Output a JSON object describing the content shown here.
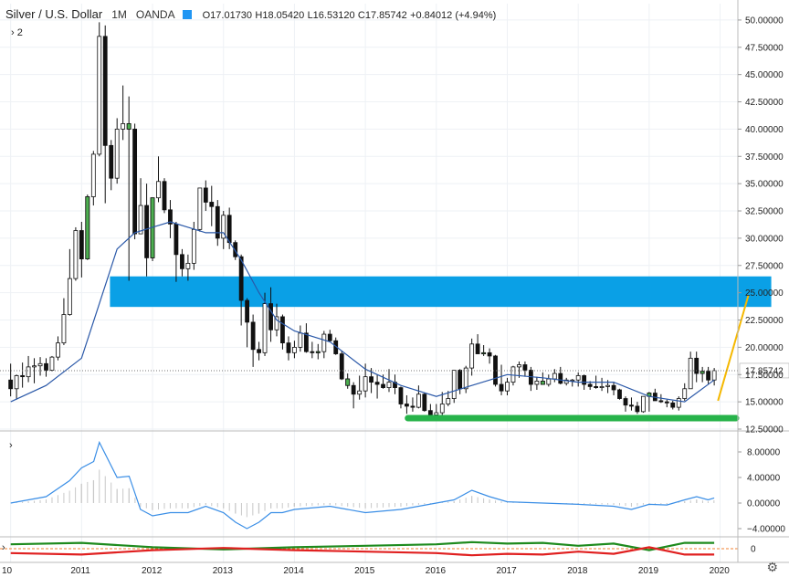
{
  "header": {
    "symbol": "Silver / U.S. Dollar",
    "interval": "1M",
    "source": "OANDA",
    "open": "O17.01730",
    "high": "H18.05420",
    "low": "L16.53120",
    "close": "C17.85742",
    "change": "+0.84012 (+4.94%)",
    "indicator_toggle": "›  2",
    "flag_color": "#2196f3"
  },
  "last_price_label": "17.85742",
  "colors": {
    "up": "#4caf50",
    "down": "#111111",
    "ma": "#2a58a8",
    "zone": "#0aa0e6",
    "support": "#27b34a",
    "trend": "#f5b800",
    "osc_green": "#1e8b1e",
    "osc_red": "#e02020",
    "osc_ref": "#f08030"
  },
  "chart_data": [
    {
      "type": "candlestick",
      "title": "Silver / U.S. Dollar",
      "ylim": [
        12.5,
        51.5
      ],
      "y_ticks": [
        "50.00000",
        "47.50000",
        "45.00000",
        "42.50000",
        "40.00000",
        "37.50000",
        "35.00000",
        "32.50000",
        "30.00000",
        "27.50000",
        "25.00000",
        "22.50000",
        "20.00000",
        "17.50000",
        "15.00000",
        "12.50000"
      ],
      "x_ticks": [
        "10",
        "2011",
        "2012",
        "2013",
        "2014",
        "2015",
        "2016",
        "2017",
        "2018",
        "2019",
        "2020"
      ],
      "series": [
        {
          "name": "close",
          "type": "candles",
          "x": [
            2010.0,
            2010.083,
            2010.167,
            2010.25,
            2010.333,
            2010.417,
            2010.5,
            2010.583,
            2010.667,
            2010.75,
            2010.833,
            2010.917,
            2011.0,
            2011.083,
            2011.167,
            2011.25,
            2011.333,
            2011.417,
            2011.5,
            2011.583,
            2011.667,
            2011.75,
            2011.833,
            2011.917,
            2012.0,
            2012.083,
            2012.167,
            2012.25,
            2012.333,
            2012.417,
            2012.5,
            2012.583,
            2012.667,
            2012.75,
            2012.833,
            2012.917,
            2013.0,
            2013.083,
            2013.167,
            2013.25,
            2013.333,
            2013.417,
            2013.5,
            2013.583,
            2013.667,
            2013.75,
            2013.833,
            2013.917,
            2014.0,
            2014.083,
            2014.167,
            2014.25,
            2014.333,
            2014.417,
            2014.5,
            2014.583,
            2014.667,
            2014.75,
            2014.833,
            2014.917,
            2015.0,
            2015.083,
            2015.167,
            2015.25,
            2015.333,
            2015.417,
            2015.5,
            2015.583,
            2015.667,
            2015.75,
            2015.833,
            2015.917,
            2016.0,
            2016.083,
            2016.167,
            2016.25,
            2016.333,
            2016.417,
            2016.5,
            2016.583,
            2016.667,
            2016.75,
            2016.833,
            2016.917,
            2017.0,
            2017.083,
            2017.167,
            2017.25,
            2017.333,
            2017.417,
            2017.5,
            2017.583,
            2017.667,
            2017.75,
            2017.833,
            2017.917,
            2018.0,
            2018.083,
            2018.167,
            2018.25,
            2018.333,
            2018.417,
            2018.5,
            2018.583,
            2018.667,
            2018.75,
            2018.833,
            2018.917,
            2019.0,
            2019.083,
            2019.167,
            2019.25,
            2019.333,
            2019.417,
            2019.5,
            2019.583,
            2019.667,
            2019.75,
            2019.833,
            2019.917
          ],
          "o": [
            17.0,
            16.2,
            17.4,
            17.3,
            18.2,
            18.3,
            18.5,
            17.9,
            19.1,
            20.4,
            23.0,
            26.3,
            30.7,
            28.1,
            33.8,
            37.7,
            48.5,
            38.5,
            35.5,
            40.0,
            40.5,
            40.0,
            30.4,
            33.0,
            28.2,
            33.7,
            35.2,
            32.6,
            31.3,
            28.5,
            27.2,
            27.7,
            30.8,
            34.6,
            33.3,
            32.9,
            30.0,
            32.1,
            29.6,
            28.3,
            24.3,
            22.3,
            19.8,
            19.5,
            24.0,
            21.6,
            22.8,
            20.4,
            19.5,
            20.0,
            21.3,
            19.6,
            19.5,
            19.6,
            21.2,
            20.6,
            19.4,
            17.1,
            16.5,
            15.7,
            16.0,
            17.3,
            16.8,
            16.6,
            16.3,
            16.8,
            16.3,
            14.8,
            14.6,
            14.5,
            15.7,
            14.2,
            13.8,
            14.0,
            14.8,
            15.3,
            17.9,
            16.2,
            18.1,
            20.3,
            19.4,
            19.5,
            19.2,
            16.6,
            16.0,
            16.8,
            18.2,
            18.4,
            17.9,
            16.6,
            16.9,
            16.6,
            17.1,
            17.6,
            16.7,
            17.0,
            17.0,
            17.4,
            16.6,
            16.4,
            16.3,
            16.4,
            16.5,
            16.1,
            15.3,
            14.7,
            14.6,
            14.1,
            15.5,
            15.8,
            15.1,
            15.0,
            14.9,
            14.5,
            15.3,
            16.2,
            19.0,
            17.6,
            17.8,
            17.0
          ],
          "h": [
            18.5,
            17.5,
            18.6,
            19.2,
            19.0,
            19.1,
            19.0,
            19.2,
            21.0,
            24.5,
            29.0,
            31.0,
            31.5,
            34.0,
            38.0,
            49.8,
            49.5,
            39.0,
            41.0,
            44.0,
            43.0,
            40.5,
            35.5,
            35.0,
            33.7,
            37.5,
            35.5,
            33.5,
            31.5,
            29.0,
            28.5,
            31.5,
            34.5,
            35.3,
            34.8,
            33.5,
            32.5,
            32.8,
            29.8,
            28.5,
            24.5,
            23.0,
            20.5,
            25.0,
            25.5,
            24.0,
            23.0,
            21.0,
            20.6,
            22.0,
            22.2,
            20.5,
            20.3,
            21.5,
            21.6,
            20.9,
            19.7,
            17.6,
            16.8,
            17.4,
            18.5,
            18.1,
            17.5,
            17.5,
            18.0,
            17.5,
            16.4,
            15.6,
            15.4,
            16.5,
            15.8,
            14.8,
            14.8,
            15.9,
            16.0,
            17.8,
            18.0,
            18.3,
            20.8,
            21.2,
            20.2,
            19.9,
            19.3,
            18.4,
            17.2,
            18.3,
            18.7,
            18.7,
            18.2,
            17.3,
            17.7,
            17.5,
            18.0,
            18.2,
            17.2,
            17.1,
            17.7,
            17.5,
            16.9,
            17.4,
            17.2,
            17.0,
            16.8,
            16.2,
            15.5,
            15.4,
            15.0,
            15.2,
            15.9,
            16.2,
            15.7,
            15.2,
            15.1,
            15.5,
            16.7,
            19.6,
            19.6,
            18.2,
            18.2,
            18.1
          ],
          "l": [
            15.5,
            15.2,
            16.3,
            16.8,
            16.7,
            17.4,
            17.3,
            17.8,
            18.8,
            20.2,
            22.9,
            26.1,
            26.4,
            28.0,
            33.0,
            37.5,
            33.2,
            34.4,
            35.0,
            39.0,
            26.1,
            29.9,
            30.5,
            26.5,
            27.9,
            33.3,
            32.3,
            30.0,
            26.0,
            26.5,
            26.1,
            27.1,
            30.6,
            32.5,
            31.1,
            29.3,
            29.0,
            29.0,
            28.0,
            22.0,
            20.0,
            18.2,
            18.8,
            19.2,
            20.5,
            21.0,
            19.8,
            18.8,
            19.0,
            19.6,
            19.5,
            19.0,
            18.9,
            19.0,
            20.5,
            19.3,
            17.0,
            16.2,
            14.4,
            15.2,
            15.4,
            15.8,
            15.3,
            16.2,
            15.9,
            15.7,
            14.4,
            13.9,
            14.1,
            14.4,
            14.1,
            13.6,
            13.6,
            13.6,
            14.6,
            14.9,
            15.7,
            15.8,
            17.4,
            19.5,
            19.2,
            18.5,
            16.4,
            15.6,
            15.6,
            16.5,
            17.2,
            17.3,
            16.0,
            16.1,
            16.6,
            16.4,
            16.8,
            16.6,
            16.5,
            16.4,
            16.4,
            16.1,
            16.1,
            16.2,
            16.0,
            15.8,
            15.6,
            15.2,
            14.1,
            14.2,
            13.9,
            14.0,
            14.1,
            15.1,
            14.9,
            14.5,
            14.3,
            14.2,
            15.1,
            16.2,
            16.8,
            16.8,
            16.6,
            16.5
          ],
          "c": [
            16.2,
            17.4,
            17.3,
            18.2,
            18.3,
            18.5,
            17.9,
            19.1,
            20.4,
            23.0,
            26.3,
            30.7,
            28.1,
            33.8,
            37.7,
            48.5,
            38.5,
            35.5,
            40.0,
            40.5,
            40.0,
            30.4,
            33.0,
            28.2,
            33.7,
            35.2,
            32.6,
            31.3,
            28.5,
            27.2,
            27.7,
            30.8,
            34.6,
            33.3,
            32.9,
            30.0,
            32.1,
            29.6,
            28.3,
            24.3,
            22.3,
            19.8,
            19.5,
            24.0,
            21.6,
            22.8,
            20.4,
            19.5,
            20.0,
            21.3,
            19.6,
            19.5,
            19.6,
            21.2,
            20.6,
            19.4,
            17.1,
            16.5,
            15.7,
            16.0,
            17.3,
            16.8,
            16.6,
            16.3,
            16.8,
            16.3,
            14.8,
            14.6,
            14.5,
            15.7,
            14.2,
            13.8,
            14.0,
            14.8,
            15.3,
            17.9,
            16.2,
            18.1,
            20.3,
            19.4,
            19.5,
            19.2,
            16.6,
            16.0,
            16.8,
            18.2,
            18.4,
            17.9,
            16.6,
            16.9,
            16.6,
            17.1,
            17.6,
            16.7,
            17.0,
            17.0,
            17.4,
            16.6,
            16.4,
            16.3,
            16.4,
            16.5,
            16.1,
            15.3,
            14.7,
            14.6,
            14.1,
            15.5,
            15.8,
            15.1,
            15.0,
            14.9,
            14.5,
            15.3,
            16.2,
            19.0,
            17.6,
            17.8,
            17.0,
            17.86
          ]
        },
        {
          "name": "MA",
          "type": "line",
          "x": [
            2010.0,
            2010.5,
            2011.0,
            2011.25,
            2011.5,
            2011.75,
            2012.0,
            2012.25,
            2012.5,
            2012.75,
            2013.0,
            2013.25,
            2013.5,
            2013.75,
            2014.0,
            2014.5,
            2015.0,
            2015.5,
            2016.0,
            2016.5,
            2017.0,
            2017.5,
            2018.0,
            2018.5,
            2019.0,
            2019.5,
            2019.917
          ],
          "values": [
            15.0,
            16.5,
            19.0,
            24.0,
            29.0,
            30.5,
            31.0,
            31.5,
            31.0,
            30.5,
            30.5,
            28.0,
            25.0,
            22.5,
            21.5,
            20.5,
            18.0,
            16.5,
            15.5,
            16.5,
            17.5,
            17.2,
            16.8,
            16.8,
            15.5,
            15.0,
            17.0
          ]
        }
      ],
      "annotations": [
        {
          "type": "zone",
          "y1": 23.7,
          "y2": 26.5,
          "x1": 2011.4,
          "x2": 2020.0
        },
        {
          "type": "support",
          "y": 13.5,
          "x1": 2015.6,
          "x2": 2020.0
        },
        {
          "type": "trendline",
          "x1": 2019.97,
          "y1": 15.1,
          "x2": 2020.4,
          "y2": 24.8
        }
      ]
    },
    {
      "type": "line",
      "ylim": [
        -5.0,
        11.0
      ],
      "y_ticks": [
        "8.00000",
        "4.00000",
        "0.00000",
        "−4.00000"
      ],
      "series": [
        {
          "name": "osc1",
          "x": [
            2010.0,
            2010.5,
            2010.83,
            2011.0,
            2011.17,
            2011.25,
            2011.5,
            2011.67,
            2011.83,
            2012.0,
            2012.25,
            2012.5,
            2012.75,
            2013.0,
            2013.17,
            2013.33,
            2013.5,
            2013.67,
            2013.83,
            2014.0,
            2014.5,
            2015.0,
            2015.5,
            2016.0,
            2016.25,
            2016.5,
            2016.75,
            2017.0,
            2017.5,
            2018.0,
            2018.5,
            2018.75,
            2019.0,
            2019.25,
            2019.5,
            2019.67,
            2019.83,
            2019.917
          ],
          "values": [
            0.0,
            1.0,
            3.5,
            5.5,
            6.5,
            9.5,
            4.0,
            4.2,
            -1.0,
            -2.0,
            -1.5,
            -1.5,
            -0.5,
            -1.5,
            -3.0,
            -4.0,
            -3.0,
            -1.5,
            -1.5,
            -1.0,
            -0.5,
            -1.5,
            -1.0,
            0.0,
            0.5,
            2.0,
            1.0,
            0.2,
            0.0,
            -0.2,
            -0.5,
            -1.0,
            -0.2,
            -0.3,
            0.5,
            1.0,
            0.5,
            0.8
          ]
        }
      ]
    },
    {
      "type": "line",
      "y_ticks": [
        "0"
      ],
      "series": [
        {
          "name": "green",
          "x": [
            2010.0,
            2011.0,
            2012.0,
            2013.0,
            2014.0,
            2015.0,
            2016.0,
            2016.5,
            2017.0,
            2017.5,
            2018.0,
            2018.5,
            2019.0,
            2019.5,
            2019.917
          ],
          "values": [
            0.6,
            0.8,
            0.2,
            -0.1,
            0.2,
            0.4,
            0.6,
            0.9,
            0.7,
            0.8,
            0.4,
            0.7,
            -0.2,
            0.8,
            0.8
          ]
        },
        {
          "name": "red",
          "x": [
            2010.0,
            2011.0,
            2012.0,
            2013.0,
            2014.0,
            2015.0,
            2016.0,
            2016.5,
            2017.0,
            2017.5,
            2018.0,
            2018.5,
            2019.0,
            2019.5,
            2019.917
          ],
          "values": [
            -0.6,
            -0.8,
            -0.2,
            0.1,
            -0.2,
            -0.4,
            -0.6,
            -0.9,
            -0.7,
            -0.8,
            -0.4,
            -0.7,
            0.2,
            -0.8,
            -0.8
          ]
        }
      ]
    }
  ]
}
